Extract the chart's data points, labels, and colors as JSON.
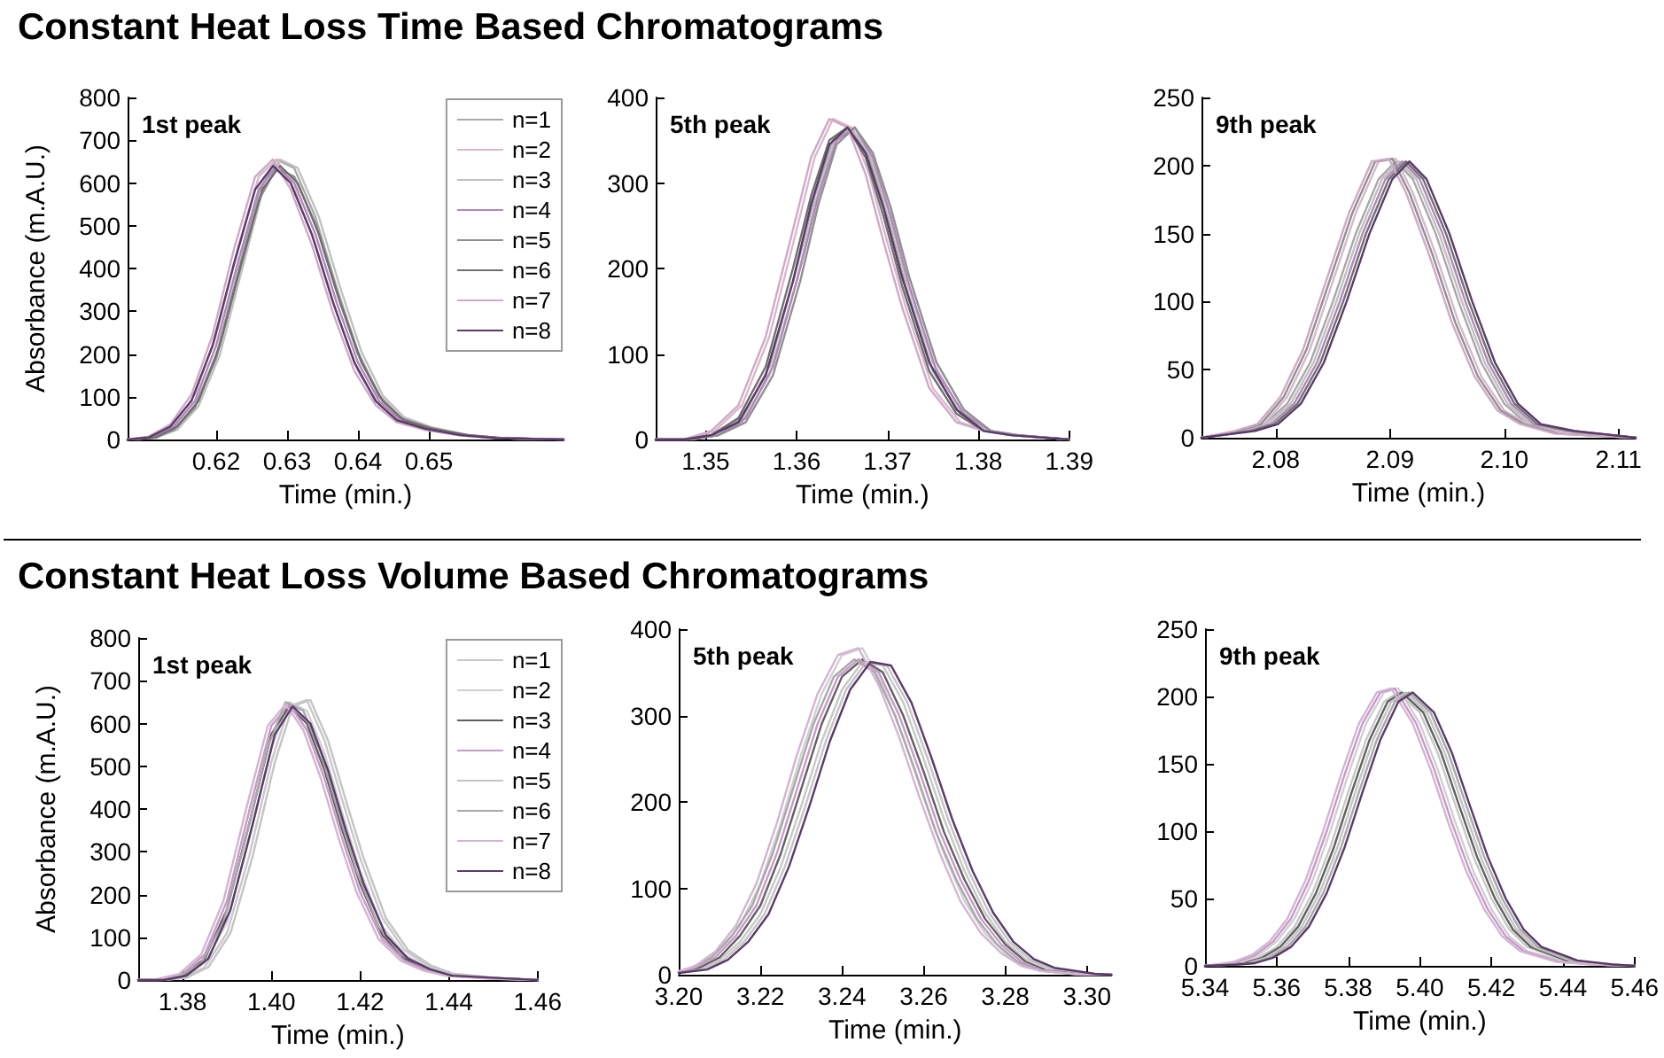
{
  "chart_data": [
    {
      "type": "line",
      "title": "Constant Heat Loss Time Based Chromatograms",
      "xlabel": "Time (min.)",
      "ylabel": "Absorbance (m.A.U.)",
      "annotations": [
        "1st peak"
      ],
      "legend": "top right",
      "marker": "none",
      "line_style": "solid",
      "x": [
        0.6075,
        0.611,
        0.614,
        0.617,
        0.62,
        0.623,
        0.626,
        0.6285,
        0.631,
        0.634,
        0.637,
        0.64,
        0.643,
        0.646,
        0.65,
        0.655,
        0.66,
        0.669
      ],
      "xlim": [
        0.6075,
        0.669
      ],
      "xticks": [
        0.62,
        0.63,
        0.64,
        0.65
      ],
      "ylim": [
        0,
        800
      ],
      "yticks": [
        0,
        100,
        200,
        300,
        400,
        500,
        600,
        700,
        800
      ],
      "series": [
        {
          "name": "n=1",
          "color": "#a8a8a8",
          "values": [
            0,
            4,
            23,
            78,
            197,
            388,
            578,
            655,
            635,
            520,
            355,
            205,
            103,
            52,
            28,
            11,
            3,
            0
          ]
        },
        {
          "name": "n=2",
          "color": "#d8b8cc",
          "values": [
            0,
            7,
            35,
            105,
            245,
            445,
            615,
            655,
            585,
            455,
            295,
            160,
            80,
            40,
            22,
            9,
            3,
            0
          ]
        },
        {
          "name": "n=3",
          "color": "#c0c0c0",
          "x": [
            0.6075,
            0.6115,
            0.6145,
            0.6175,
            0.6205,
            0.6235,
            0.6265,
            0.629,
            0.6315,
            0.6345,
            0.6375,
            0.6405,
            0.6435,
            0.6465,
            0.6505,
            0.6555,
            0.6605,
            0.669
          ],
          "values": [
            0,
            4,
            23,
            78,
            197,
            388,
            578,
            655,
            635,
            520,
            355,
            205,
            103,
            52,
            28,
            11,
            3,
            0
          ]
        },
        {
          "name": "n=4",
          "color": "#b088b8",
          "values": [
            0,
            5,
            30,
            90,
            220,
            410,
            585,
            640,
            600,
            480,
            320,
            180,
            90,
            45,
            25,
            10,
            3,
            0
          ]
        },
        {
          "name": "n=5",
          "color": "#909090",
          "values": [
            0,
            4,
            22,
            75,
            190,
            375,
            560,
            635,
            615,
            505,
            345,
            200,
            100,
            50,
            28,
            11,
            3,
            0
          ]
        },
        {
          "name": "n=6",
          "color": "#707070",
          "x": [
            0.6075,
            0.6115,
            0.6145,
            0.6175,
            0.6205,
            0.6235,
            0.6265,
            0.629,
            0.6315,
            0.6345,
            0.6375,
            0.6405,
            0.6435,
            0.6465,
            0.6505,
            0.6555,
            0.6605,
            0.669
          ],
          "values": [
            0,
            5,
            30,
            90,
            220,
            410,
            585,
            640,
            600,
            480,
            320,
            180,
            90,
            45,
            25,
            10,
            3,
            0
          ]
        },
        {
          "name": "n=7",
          "color": "#d0a8c8",
          "x": [
            0.6075,
            0.6105,
            0.6135,
            0.6165,
            0.6195,
            0.6225,
            0.6255,
            0.628,
            0.6305,
            0.6335,
            0.6365,
            0.6395,
            0.6425,
            0.6455,
            0.6495,
            0.6545,
            0.6595,
            0.669
          ],
          "values": [
            0,
            7,
            35,
            105,
            245,
            445,
            615,
            655,
            585,
            455,
            295,
            160,
            80,
            40,
            22,
            9,
            3,
            0
          ]
        },
        {
          "name": "n=8",
          "color": "#5a3a6a",
          "x": [
            0.6075,
            0.6105,
            0.6135,
            0.6165,
            0.6195,
            0.6225,
            0.6255,
            0.628,
            0.6305,
            0.6335,
            0.6365,
            0.6395,
            0.6425,
            0.6455,
            0.6495,
            0.6545,
            0.6595,
            0.669
          ],
          "values": [
            0,
            5,
            30,
            90,
            220,
            410,
            585,
            640,
            600,
            480,
            320,
            180,
            90,
            45,
            25,
            10,
            3,
            0
          ]
        }
      ]
    },
    {
      "type": "line",
      "xlabel": "Time (min.)",
      "annotations": [
        "5th peak"
      ],
      "marker": "none",
      "line_style": "solid",
      "x": [
        1.3445,
        1.348,
        1.351,
        1.354,
        1.357,
        1.36,
        1.362,
        1.364,
        1.366,
        1.368,
        1.37,
        1.372,
        1.375,
        1.378,
        1.381,
        1.384,
        1.39
      ],
      "xlim": [
        1.3445,
        1.39
      ],
      "xticks": [
        1.35,
        1.36,
        1.37,
        1.38,
        1.39
      ],
      "ylim": [
        0,
        400
      ],
      "yticks": [
        0,
        100,
        200,
        300,
        400
      ],
      "series": [
        {
          "color": "#a8a8a8",
          "values": [
            0,
            0,
            5,
            25,
            85,
            200,
            285,
            350,
            365,
            330,
            260,
            180,
            80,
            30,
            10,
            5,
            0
          ]
        },
        {
          "color": "#d8b8cc",
          "values": [
            0,
            0,
            10,
            40,
            120,
            245,
            330,
            375,
            365,
            310,
            230,
            155,
            60,
            20,
            10,
            5,
            0
          ]
        },
        {
          "color": "#c0c0c0",
          "values": [
            0,
            0,
            5,
            20,
            75,
            185,
            275,
            345,
            365,
            335,
            270,
            190,
            90,
            35,
            10,
            5,
            0
          ]
        },
        {
          "color": "#b088b8",
          "x": [
            1.3445,
            1.3484,
            1.3514,
            1.3544,
            1.3574,
            1.3604,
            1.3624,
            1.3644,
            1.3664,
            1.3684,
            1.3704,
            1.3724,
            1.3754,
            1.3784,
            1.3814,
            1.3844,
            1.39
          ],
          "values": [
            0,
            0,
            5,
            25,
            85,
            200,
            285,
            350,
            365,
            330,
            260,
            180,
            80,
            30,
            10,
            5,
            0
          ]
        },
        {
          "color": "#909090",
          "x": [
            1.3445,
            1.3484,
            1.3514,
            1.3544,
            1.3574,
            1.3604,
            1.3624,
            1.3644,
            1.3664,
            1.3684,
            1.3704,
            1.3724,
            1.3754,
            1.3784,
            1.3814,
            1.3844,
            1.39
          ],
          "values": [
            0,
            0,
            5,
            20,
            75,
            185,
            275,
            345,
            365,
            335,
            270,
            190,
            90,
            35,
            10,
            5,
            0
          ]
        },
        {
          "color": "#707070",
          "x": [
            1.3445,
            1.3476,
            1.3506,
            1.3536,
            1.3566,
            1.3596,
            1.3616,
            1.3636,
            1.3656,
            1.3676,
            1.3696,
            1.3716,
            1.3746,
            1.3776,
            1.3806,
            1.3836,
            1.39
          ],
          "values": [
            0,
            0,
            5,
            25,
            85,
            200,
            285,
            350,
            365,
            330,
            260,
            180,
            80,
            30,
            10,
            5,
            0
          ]
        },
        {
          "color": "#d0a8c8",
          "x": [
            1.3445,
            1.3476,
            1.3506,
            1.3536,
            1.3566,
            1.3596,
            1.3616,
            1.3636,
            1.3656,
            1.3676,
            1.3696,
            1.3716,
            1.3746,
            1.3776,
            1.3806,
            1.3836,
            1.39
          ],
          "values": [
            0,
            0,
            10,
            40,
            120,
            245,
            330,
            375,
            365,
            310,
            230,
            155,
            60,
            20,
            10,
            5,
            0
          ]
        },
        {
          "color": "#5a3a6a",
          "x": [
            1.3445,
            1.3476,
            1.3506,
            1.3536,
            1.3566,
            1.3596,
            1.3616,
            1.3636,
            1.3656,
            1.3676,
            1.3696,
            1.3716,
            1.3746,
            1.3776,
            1.3806,
            1.3836,
            1.39
          ],
          "values": [
            0,
            0,
            5,
            20,
            75,
            185,
            275,
            345,
            365,
            335,
            270,
            190,
            90,
            35,
            10,
            5,
            0
          ]
        }
      ]
    },
    {
      "type": "line",
      "xlabel": "Time (min.)",
      "annotations": [
        "9th peak"
      ],
      "marker": "none",
      "line_style": "solid",
      "x": [
        2.0735,
        2.077,
        2.079,
        2.081,
        2.083,
        2.085,
        2.087,
        2.089,
        2.0905,
        2.092,
        2.094,
        2.096,
        2.098,
        2.1,
        2.102,
        2.105,
        2.1115
      ],
      "xlim": [
        2.0735,
        2.1115
      ],
      "xticks": [
        2.08,
        2.09,
        {
          "value": 2.1,
          "label": "2.10"
        },
        2.11
      ],
      "ylim": [
        0,
        250
      ],
      "yticks": [
        0,
        50,
        100,
        150,
        200,
        250
      ],
      "series": [
        {
          "color": "#a8a8a8",
          "values": [
            0,
            5,
            10,
            25,
            55,
            100,
            150,
            190,
            203,
            190,
            150,
            100,
            55,
            25,
            10,
            5,
            0
          ]
        },
        {
          "color": "#d8b8cc",
          "values": [
            0,
            5,
            10,
            30,
            65,
            115,
            165,
            203,
            205,
            180,
            135,
            85,
            45,
            20,
            10,
            3,
            0
          ]
        },
        {
          "color": "#c0c0c0",
          "x": [
            2.0735,
            2.0773,
            2.0793,
            2.0813,
            2.0833,
            2.0853,
            2.0873,
            2.0893,
            2.0908,
            2.0923,
            2.0943,
            2.0963,
            2.0983,
            2.1003,
            2.1023,
            2.1053,
            2.1115
          ],
          "values": [
            0,
            5,
            10,
            25,
            55,
            100,
            150,
            190,
            203,
            190,
            150,
            100,
            55,
            25,
            10,
            5,
            0
          ]
        },
        {
          "color": "#b088b8",
          "x": [
            2.0735,
            2.0776,
            2.0796,
            2.0816,
            2.0836,
            2.0856,
            2.0876,
            2.0896,
            2.0911,
            2.0926,
            2.0946,
            2.0966,
            2.0986,
            2.1006,
            2.1026,
            2.1056,
            2.1115
          ],
          "values": [
            0,
            5,
            10,
            25,
            55,
            100,
            150,
            190,
            203,
            190,
            150,
            100,
            55,
            25,
            10,
            5,
            0
          ]
        },
        {
          "color": "#909090",
          "x": [
            2.0735,
            2.0767,
            2.0787,
            2.0807,
            2.0827,
            2.0847,
            2.0867,
            2.0887,
            2.0902,
            2.0917,
            2.0937,
            2.0957,
            2.0977,
            2.0997,
            2.1017,
            2.1047,
            2.1115
          ],
          "values": [
            0,
            5,
            10,
            30,
            65,
            115,
            165,
            203,
            205,
            180,
            135,
            85,
            45,
            20,
            10,
            3,
            0
          ]
        },
        {
          "color": "#707070",
          "x": [
            2.0735,
            2.0779,
            2.0799,
            2.0819,
            2.0839,
            2.0859,
            2.0879,
            2.0899,
            2.0914,
            2.0929,
            2.0949,
            2.0969,
            2.0989,
            2.1009,
            2.1029,
            2.1059,
            2.1115
          ],
          "values": [
            0,
            5,
            10,
            25,
            55,
            100,
            150,
            190,
            203,
            190,
            150,
            100,
            55,
            25,
            10,
            5,
            0
          ]
        },
        {
          "color": "#d0a8c8",
          "x": [
            2.0735,
            2.0764,
            2.0784,
            2.0804,
            2.0824,
            2.0844,
            2.0864,
            2.0884,
            2.0899,
            2.0914,
            2.0934,
            2.0954,
            2.0974,
            2.0994,
            2.1014,
            2.1044,
            2.1115
          ],
          "values": [
            0,
            5,
            10,
            30,
            65,
            115,
            165,
            203,
            205,
            180,
            135,
            85,
            45,
            20,
            10,
            3,
            0
          ]
        },
        {
          "color": "#5a3a6a",
          "x": [
            2.0735,
            2.0782,
            2.0802,
            2.0822,
            2.0842,
            2.0862,
            2.0882,
            2.0902,
            2.0917,
            2.0932,
            2.0952,
            2.0972,
            2.0992,
            2.1012,
            2.1032,
            2.1062,
            2.1115
          ],
          "values": [
            0,
            5,
            10,
            25,
            55,
            100,
            150,
            190,
            203,
            190,
            150,
            100,
            55,
            25,
            10,
            5,
            0
          ]
        }
      ]
    },
    {
      "type": "line",
      "title": "Constant Heat Loss Volume Based Chromatograms",
      "xlabel": "Time (min.)",
      "ylabel": "Absorbance (m.A.U.)",
      "annotations": [
        "1st peak"
      ],
      "legend": "top right",
      "marker": "none",
      "line_style": "solid",
      "x": [
        1.37,
        1.375,
        1.38,
        1.385,
        1.39,
        1.395,
        1.4,
        1.404,
        1.408,
        1.412,
        1.416,
        1.42,
        1.425,
        1.43,
        1.435,
        1.44,
        1.45,
        1.46
      ],
      "xlim": [
        1.37,
        1.46
      ],
      "xticks": [
        1.38,
        {
          "value": 1.4,
          "label": "1.40"
        },
        1.42,
        1.44,
        1.46
      ],
      "ylim": [
        0,
        800
      ],
      "yticks": [
        0,
        100,
        200,
        300,
        400,
        500,
        600,
        700,
        800
      ],
      "series": [
        {
          "name": "n=1",
          "color": "#c8c8c8",
          "values": [
            0,
            0,
            5,
            30,
            110,
            290,
            510,
            640,
            655,
            560,
            420,
            285,
            145,
            70,
            35,
            15,
            5,
            0
          ]
        },
        {
          "name": "n=2",
          "color": "#d0d0d0",
          "values": [
            0,
            0,
            8,
            40,
            135,
            330,
            545,
            650,
            630,
            530,
            390,
            255,
            125,
            60,
            30,
            12,
            5,
            0
          ]
        },
        {
          "name": "n=3",
          "color": "#606060",
          "values": [
            0,
            0,
            10,
            50,
            165,
            365,
            575,
            640,
            600,
            490,
            350,
            225,
            105,
            50,
            25,
            10,
            5,
            0
          ]
        },
        {
          "name": "n=4",
          "color": "#c89ac8",
          "values": [
            0,
            2,
            14,
            60,
            185,
            395,
            595,
            645,
            585,
            470,
            330,
            205,
            95,
            45,
            22,
            10,
            3,
            0
          ]
        },
        {
          "name": "n=5",
          "color": "#c4c4c4",
          "x": [
            1.37,
            1.3758,
            1.3808,
            1.3858,
            1.3908,
            1.3958,
            1.4008,
            1.4048,
            1.4088,
            1.4128,
            1.4168,
            1.4208,
            1.4258,
            1.4308,
            1.4358,
            1.4408,
            1.4508,
            1.46
          ],
          "values": [
            0,
            0,
            5,
            30,
            110,
            290,
            510,
            640,
            655,
            560,
            420,
            285,
            145,
            70,
            35,
            15,
            5,
            0
          ]
        },
        {
          "name": "n=6",
          "color": "#a8a8a8",
          "x": [
            1.37,
            1.3742,
            1.3792,
            1.3842,
            1.3892,
            1.3942,
            1.3992,
            1.4032,
            1.4072,
            1.4112,
            1.4152,
            1.4192,
            1.4242,
            1.4292,
            1.4342,
            1.4392,
            1.4492,
            1.46
          ],
          "values": [
            0,
            0,
            8,
            40,
            135,
            330,
            545,
            650,
            630,
            530,
            390,
            255,
            125,
            60,
            30,
            12,
            5,
            0
          ]
        },
        {
          "name": "n=7",
          "color": "#d4b4d4",
          "x": [
            1.37,
            1.3742,
            1.3792,
            1.3842,
            1.3892,
            1.3942,
            1.3992,
            1.4032,
            1.4072,
            1.4112,
            1.4152,
            1.4192,
            1.4242,
            1.4292,
            1.4342,
            1.4392,
            1.4492,
            1.46
          ],
          "values": [
            0,
            2,
            14,
            60,
            185,
            395,
            595,
            645,
            585,
            470,
            330,
            205,
            95,
            45,
            22,
            10,
            3,
            0
          ]
        },
        {
          "name": "n=8",
          "color": "#5a3a6a",
          "x": [
            1.37,
            1.3758,
            1.3808,
            1.3858,
            1.3908,
            1.3958,
            1.4008,
            1.4048,
            1.4088,
            1.4128,
            1.4168,
            1.4208,
            1.4258,
            1.4308,
            1.4358,
            1.4408,
            1.4508,
            1.46
          ],
          "values": [
            0,
            0,
            10,
            50,
            165,
            365,
            575,
            640,
            600,
            490,
            350,
            225,
            105,
            50,
            25,
            10,
            5,
            0
          ]
        }
      ]
    },
    {
      "type": "line",
      "xlabel": "Time (min.)",
      "annotations": [
        "5th peak"
      ],
      "marker": "none",
      "line_style": "solid",
      "x": [
        3.2,
        3.205,
        3.21,
        3.215,
        3.22,
        3.225,
        3.23,
        3.235,
        3.24,
        3.245,
        3.25,
        3.255,
        3.26,
        3.265,
        3.27,
        3.275,
        3.28,
        3.285,
        3.29,
        3.3,
        3.306
      ],
      "xlim": [
        3.2,
        3.306
      ],
      "xticks": [
        {
          "value": 3.2,
          "label": "3.20"
        },
        3.22,
        3.24,
        3.26,
        3.28,
        {
          "value": 3.3,
          "label": "3.30"
        }
      ],
      "ylim": [
        0,
        400
      ],
      "yticks": [
        0,
        100,
        200,
        300,
        400
      ],
      "series": [
        {
          "color": "#c8c8c8",
          "values": [
            2,
            6,
            17,
            38,
            70,
            125,
            195,
            270,
            330,
            362,
            358,
            315,
            250,
            180,
            120,
            72,
            38,
            18,
            8,
            1,
            0
          ]
        },
        {
          "color": "#d0d0d0",
          "values": [
            4,
            10,
            27,
            57,
            105,
            175,
            255,
            325,
            370,
            378,
            335,
            275,
            205,
            140,
            85,
            48,
            25,
            10,
            4,
            0,
            0
          ]
        },
        {
          "color": "#606060",
          "values": [
            3,
            8,
            20,
            45,
            80,
            140,
            215,
            290,
            345,
            365,
            350,
            300,
            235,
            165,
            110,
            65,
            35,
            15,
            5,
            0,
            0
          ]
        },
        {
          "color": "#c89ac8",
          "x": [
            3.2,
            3.204,
            3.209,
            3.214,
            3.219,
            3.224,
            3.229,
            3.234,
            3.239,
            3.244,
            3.249,
            3.254,
            3.259,
            3.264,
            3.269,
            3.274,
            3.279,
            3.284,
            3.289,
            3.299,
            3.306
          ],
          "values": [
            3,
            8,
            20,
            45,
            80,
            140,
            215,
            290,
            345,
            365,
            350,
            300,
            235,
            165,
            110,
            65,
            35,
            15,
            5,
            0,
            0
          ]
        },
        {
          "color": "#c4c4c4",
          "x": [
            3.2,
            3.206,
            3.211,
            3.216,
            3.221,
            3.226,
            3.231,
            3.236,
            3.241,
            3.246,
            3.251,
            3.256,
            3.261,
            3.266,
            3.271,
            3.276,
            3.281,
            3.286,
            3.291,
            3.301,
            3.306
          ],
          "values": [
            2,
            6,
            17,
            38,
            70,
            125,
            195,
            270,
            330,
            362,
            358,
            315,
            250,
            180,
            120,
            72,
            38,
            18,
            8,
            1,
            0
          ]
        },
        {
          "color": "#a8a8a8",
          "x": [
            3.2,
            3.203,
            3.208,
            3.213,
            3.218,
            3.223,
            3.228,
            3.233,
            3.238,
            3.243,
            3.248,
            3.253,
            3.258,
            3.263,
            3.268,
            3.273,
            3.278,
            3.283,
            3.288,
            3.298,
            3.306
          ],
          "values": [
            3,
            8,
            20,
            45,
            80,
            140,
            215,
            290,
            345,
            365,
            350,
            300,
            235,
            165,
            110,
            65,
            35,
            15,
            5,
            0,
            0
          ]
        },
        {
          "color": "#d4b4d4",
          "x": [
            3.2,
            3.204,
            3.209,
            3.214,
            3.219,
            3.224,
            3.229,
            3.234,
            3.239,
            3.244,
            3.249,
            3.254,
            3.259,
            3.264,
            3.269,
            3.274,
            3.279,
            3.284,
            3.289,
            3.299,
            3.306
          ],
          "values": [
            4,
            10,
            27,
            57,
            105,
            175,
            255,
            325,
            370,
            378,
            335,
            275,
            205,
            140,
            85,
            48,
            25,
            10,
            4,
            0,
            0
          ]
        },
        {
          "color": "#5a3a6a",
          "x": [
            3.2,
            3.207,
            3.212,
            3.217,
            3.222,
            3.227,
            3.232,
            3.237,
            3.242,
            3.247,
            3.252,
            3.257,
            3.262,
            3.267,
            3.272,
            3.277,
            3.282,
            3.287,
            3.292,
            3.302,
            3.306
          ],
          "values": [
            2,
            6,
            17,
            38,
            70,
            125,
            195,
            270,
            330,
            362,
            358,
            315,
            250,
            180,
            120,
            72,
            38,
            18,
            8,
            1,
            0
          ]
        }
      ]
    },
    {
      "type": "line",
      "xlabel": "Time (min.)",
      "annotations": [
        "9th peak"
      ],
      "marker": "none",
      "line_style": "solid",
      "x": [
        5.34,
        5.345,
        5.35,
        5.355,
        5.36,
        5.365,
        5.37,
        5.375,
        5.38,
        5.385,
        5.39,
        5.394,
        5.4,
        5.405,
        5.41,
        5.415,
        5.42,
        5.425,
        5.43,
        5.44,
        5.45,
        5.46
      ],
      "xlim": [
        5.34,
        5.46
      ],
      "xticks": [
        5.34,
        5.36,
        5.38,
        {
          "value": 5.4,
          "label": "5.40"
        },
        5.42,
        5.44,
        5.46
      ],
      "ylim": [
        0,
        250
      ],
      "yticks": [
        0,
        50,
        100,
        150,
        200,
        250
      ],
      "series": [
        {
          "color": "#c8c8c8",
          "values": [
            0,
            1,
            2,
            6,
            14,
            29,
            54,
            88,
            129,
            168,
            196,
            203,
            188,
            158,
            119,
            81,
            50,
            27,
            14,
            4,
            1,
            0
          ]
        },
        {
          "color": "#d0d0d0",
          "values": [
            0,
            1,
            3,
            8,
            18,
            35,
            63,
            100,
            142,
            180,
            203,
            206,
            180,
            146,
            106,
            70,
            42,
            22,
            11,
            3,
            1,
            0
          ]
        },
        {
          "color": "#606060",
          "x": [
            5.34,
            5.346,
            5.351,
            5.356,
            5.361,
            5.366,
            5.371,
            5.376,
            5.381,
            5.386,
            5.391,
            5.395,
            5.401,
            5.406,
            5.411,
            5.416,
            5.421,
            5.426,
            5.431,
            5.441,
            5.451,
            5.46
          ],
          "values": [
            0,
            1,
            2,
            6,
            14,
            29,
            54,
            88,
            129,
            168,
            196,
            203,
            188,
            158,
            119,
            81,
            50,
            27,
            14,
            4,
            1,
            0
          ]
        },
        {
          "color": "#c89ac8",
          "x": [
            5.34,
            5.344,
            5.349,
            5.354,
            5.359,
            5.364,
            5.369,
            5.374,
            5.379,
            5.384,
            5.389,
            5.393,
            5.399,
            5.404,
            5.409,
            5.414,
            5.419,
            5.424,
            5.429,
            5.439,
            5.449,
            5.46
          ],
          "values": [
            0,
            1,
            3,
            8,
            18,
            35,
            63,
            100,
            142,
            180,
            203,
            206,
            180,
            146,
            106,
            70,
            42,
            22,
            11,
            3,
            1,
            0
          ]
        },
        {
          "color": "#c4c4c4",
          "x": [
            5.34,
            5.347,
            5.352,
            5.357,
            5.362,
            5.367,
            5.372,
            5.377,
            5.382,
            5.387,
            5.392,
            5.396,
            5.402,
            5.407,
            5.412,
            5.417,
            5.422,
            5.427,
            5.432,
            5.442,
            5.452,
            5.46
          ],
          "values": [
            0,
            1,
            2,
            6,
            14,
            29,
            54,
            88,
            129,
            168,
            196,
            203,
            188,
            158,
            119,
            81,
            50,
            27,
            14,
            4,
            1,
            0
          ]
        },
        {
          "color": "#a8a8a8",
          "x": [
            5.34,
            5.348,
            5.353,
            5.358,
            5.363,
            5.368,
            5.373,
            5.378,
            5.383,
            5.388,
            5.393,
            5.397,
            5.403,
            5.408,
            5.413,
            5.418,
            5.423,
            5.428,
            5.433,
            5.443,
            5.453,
            5.46
          ],
          "values": [
            0,
            1,
            2,
            6,
            14,
            29,
            54,
            88,
            129,
            168,
            196,
            203,
            188,
            158,
            119,
            81,
            50,
            27,
            14,
            4,
            1,
            0
          ]
        },
        {
          "color": "#d4b4d4",
          "x": [
            5.34,
            5.343,
            5.348,
            5.353,
            5.358,
            5.363,
            5.368,
            5.373,
            5.378,
            5.383,
            5.388,
            5.392,
            5.398,
            5.403,
            5.408,
            5.413,
            5.418,
            5.423,
            5.428,
            5.438,
            5.448,
            5.46
          ],
          "values": [
            0,
            1,
            3,
            8,
            18,
            35,
            63,
            100,
            142,
            180,
            203,
            206,
            180,
            146,
            106,
            70,
            42,
            22,
            11,
            3,
            1,
            0
          ]
        },
        {
          "color": "#5a3a6a",
          "x": [
            5.34,
            5.349,
            5.354,
            5.359,
            5.364,
            5.369,
            5.374,
            5.379,
            5.384,
            5.389,
            5.394,
            5.398,
            5.404,
            5.409,
            5.414,
            5.419,
            5.424,
            5.429,
            5.434,
            5.444,
            5.454,
            5.46
          ],
          "values": [
            0,
            1,
            2,
            6,
            14,
            29,
            54,
            88,
            129,
            168,
            196,
            203,
            188,
            158,
            119,
            81,
            50,
            27,
            14,
            4,
            1,
            0
          ]
        }
      ]
    }
  ]
}
